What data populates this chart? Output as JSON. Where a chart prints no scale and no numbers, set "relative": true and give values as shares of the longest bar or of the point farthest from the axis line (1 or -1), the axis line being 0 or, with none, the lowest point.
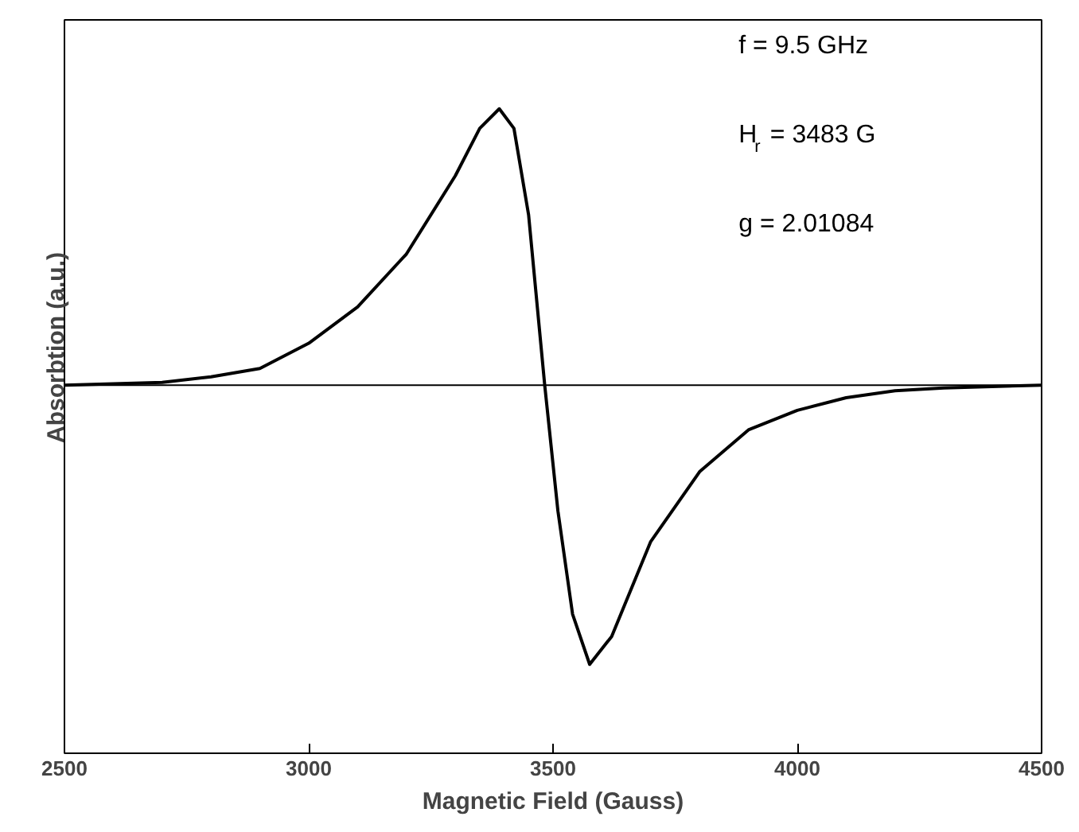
{
  "chart_data": {
    "type": "line",
    "xlabel": "Magnetic Field (Gauss)",
    "ylabel": "Absorbtion (a.u.)",
    "relative": true,
    "xlim": [
      2500,
      4500
    ],
    "xticks": [
      2500,
      3000,
      3500,
      4000,
      4500
    ],
    "x": [
      2500,
      2700,
      2800,
      2900,
      3000,
      3100,
      3200,
      3300,
      3350,
      3390,
      3420,
      3450,
      3483,
      3510,
      3540,
      3575,
      3620,
      3700,
      3800,
      3900,
      4000,
      4100,
      4200,
      4300,
      4500
    ],
    "series": [
      {
        "color": "#000000",
        "values": [
          0,
          0.01,
          0.03,
          0.06,
          0.15,
          0.28,
          0.47,
          0.75,
          0.92,
          0.99,
          0.92,
          0.61,
          0,
          -0.45,
          -0.82,
          -1,
          -0.9,
          -0.56,
          -0.31,
          -0.16,
          -0.09,
          -0.045,
          -0.02,
          -0.01,
          0
        ]
      }
    ],
    "ref_lines": [
      {
        "axis": "y",
        "value": 0,
        "color": "#000000"
      }
    ],
    "annotations": [
      "f = 9.5 GHz",
      "H$_{r}$ = 3483 G",
      "g = 2.01084"
    ],
    "grid": false,
    "marker": "none",
    "line_style": "solid"
  }
}
